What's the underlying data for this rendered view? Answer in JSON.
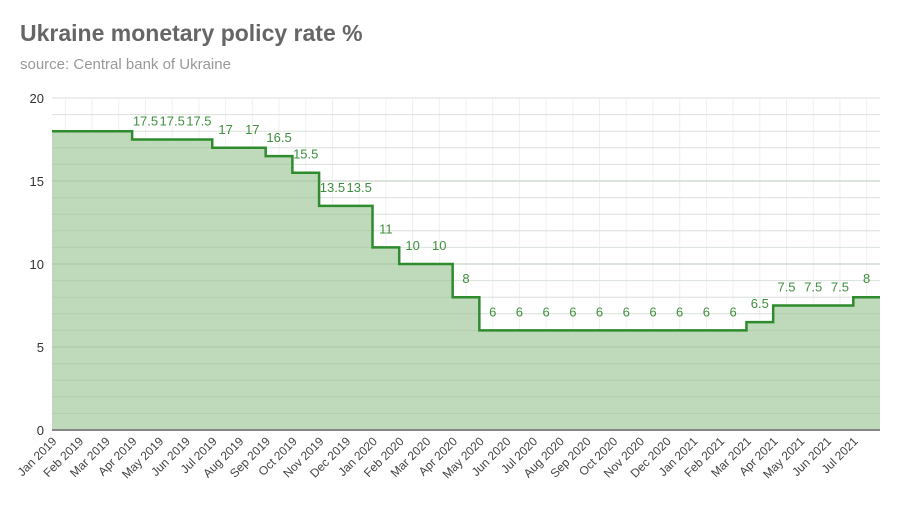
{
  "chart_data": {
    "type": "area",
    "subtype": "step",
    "title": "Ukraine monetary policy rate %",
    "subtitle": "source: Central bank of Ukraine",
    "xlabel": "",
    "ylabel": "",
    "ylim": [
      0,
      20
    ],
    "yticks": [
      0,
      5,
      10,
      15,
      20
    ],
    "grid": true,
    "legend": "none",
    "colors": {
      "line": "#2e8b2e",
      "fill": "#bfd9bb",
      "label": "#3f8f3f",
      "title": "#666666",
      "subtitle": "#999999"
    },
    "categories": [
      "Jan 2019",
      "Feb 2019",
      "Mar 2019",
      "Apr 2019",
      "May 2019",
      "Jun 2019",
      "Jul 2019",
      "Aug 2019",
      "Sep 2019",
      "Oct 2019",
      "Nov 2019",
      "Dec 2019",
      "Jan 2020",
      "Feb 2020",
      "Mar 2020",
      "Apr 2020",
      "May 2020",
      "Jun 2020",
      "Jul 2020",
      "Aug 2020",
      "Sep 2020",
      "Oct 2020",
      "Nov 2020",
      "Dec 2020",
      "Jan 2021",
      "Feb 2021",
      "Mar 2021",
      "Apr 2021",
      "May 2021",
      "Jun 2021",
      "Jul 2021"
    ],
    "values": [
      18,
      18,
      18,
      17.5,
      17.5,
      17.5,
      17,
      17,
      16.5,
      15.5,
      13.5,
      13.5,
      11,
      10,
      10,
      8,
      6,
      6,
      6,
      6,
      6,
      6,
      6,
      6,
      6,
      6,
      6.5,
      7.5,
      7.5,
      7.5,
      8
    ],
    "data_labels": [
      "",
      "",
      "",
      "17.5",
      "17.5",
      "17.5",
      "17",
      "17",
      "16.5",
      "15.5",
      "13.5",
      "13.5",
      "11",
      "10",
      "10",
      "8",
      "6",
      "6",
      "6",
      "6",
      "6",
      "6",
      "6",
      "6",
      "6",
      "6",
      "6.5",
      "7.5",
      "7.5",
      "7.5",
      "8"
    ]
  }
}
